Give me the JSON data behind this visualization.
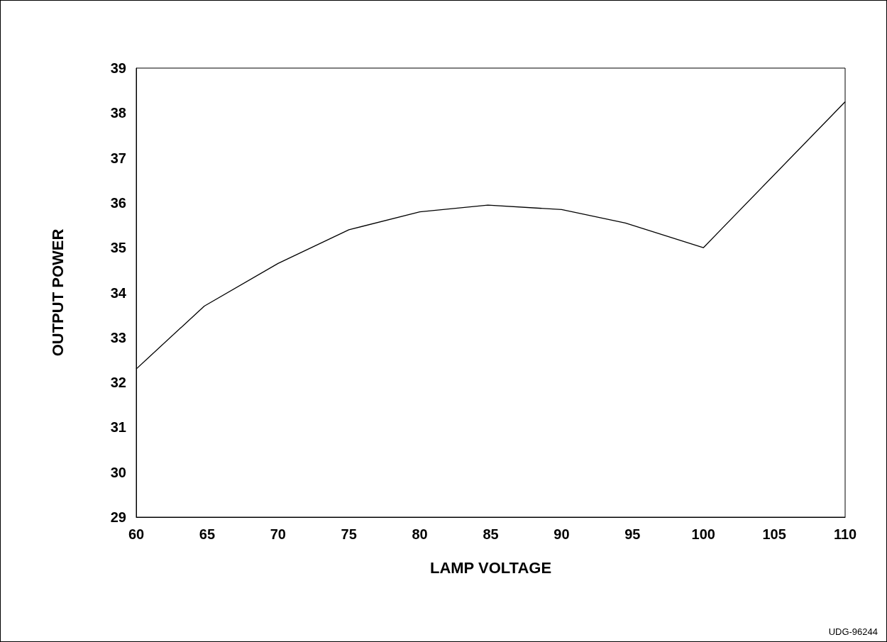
{
  "chart_data": {
    "type": "line",
    "xlabel": "LAMP VOLTAGE",
    "ylabel": "OUTPUT POWER",
    "x": [
      60,
      64.8,
      70,
      75,
      80,
      84.8,
      90,
      94.5,
      100,
      110
    ],
    "series": [
      {
        "color": "#000000",
        "values": [
          32.3,
          33.7,
          34.65,
          35.4,
          35.8,
          35.95,
          35.85,
          35.55,
          35.0,
          38.25
        ]
      }
    ],
    "xlim": [
      60,
      110
    ],
    "xticks": [
      60,
      65,
      70,
      75,
      80,
      85,
      90,
      95,
      100,
      105,
      110
    ],
    "ylim": [
      29,
      39
    ],
    "yticks": [
      29,
      30,
      31,
      32,
      33,
      34,
      35,
      36,
      37,
      38,
      39
    ],
    "grid": false,
    "marker": "none",
    "line_style": "solid",
    "annotations": [
      "UDG-96244"
    ]
  }
}
